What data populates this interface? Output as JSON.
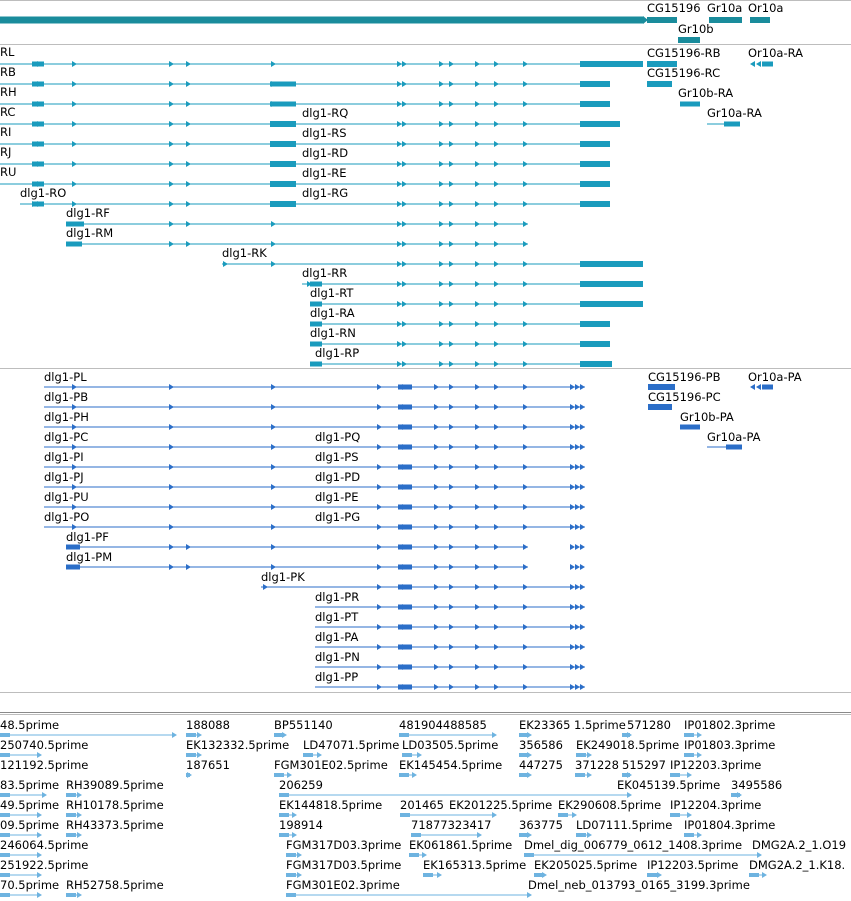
{
  "colors": {
    "gene": "#1a8c9c",
    "rna": "#1a9bbd",
    "protein": "#2b6ec8",
    "cdna": "#6eb3e0"
  },
  "gene_track": {
    "label_items": [
      "CG15196",
      "Gr10a",
      "Or10a",
      "Gr10b"
    ]
  },
  "rna_track": {
    "items": [
      "RL",
      "RB",
      "RH",
      "RC",
      "RI",
      "RJ",
      "RU",
      "dlg1-RO",
      "dlg1-RF",
      "dlg1-RM",
      "dlg1-RK",
      "dlg1-RQ",
      "dlg1-RS",
      "dlg1-RD",
      "dlg1-RE",
      "dlg1-RG",
      "dlg1-RR",
      "dlg1-RT",
      "dlg1-RA",
      "dlg1-RN",
      "dlg1-RP",
      "CG15196-RB",
      "CG15196-RC",
      "Or10a-RA",
      "Gr10b-RA",
      "Gr10a-RA"
    ]
  },
  "protein_track": {
    "items": [
      "dlg1-PL",
      "dlg1-PB",
      "dlg1-PH",
      "dlg1-PC",
      "dlg1-PI",
      "dlg1-PJ",
      "dlg1-PU",
      "dlg1-PO",
      "dlg1-PF",
      "dlg1-PM",
      "dlg1-PK",
      "dlg1-PQ",
      "dlg1-PS",
      "dlg1-PD",
      "dlg1-PE",
      "dlg1-PG",
      "dlg1-PR",
      "dlg1-PT",
      "dlg1-PA",
      "dlg1-PN",
      "dlg1-PP",
      "CG15196-PB",
      "CG15196-PC",
      "Or10a-PA",
      "Gr10b-PA",
      "Gr10a-PA"
    ]
  },
  "cdna_track": {
    "items": [
      "48.5prime",
      "188088",
      "BP551140",
      "481904488585",
      "EK23365",
      "1.5prime",
      "571280",
      "IP01802.3prime",
      "250740.5prime",
      "EK132332.5prime",
      "LD47071.5prime",
      "LD03505.5prime",
      "356586",
      "EK249018.5prime",
      "IP01803.3prime",
      "121192.5prime",
      "187651",
      "FGM301E02.5prime",
      "EK145454.5prime",
      "447275",
      "371228",
      "515297",
      "IP12203.3prime",
      "83.5prime",
      "RH39089.5prime",
      "206259",
      "EK045139.5prime",
      "3495586",
      "49.5prime",
      "RH10178.5prime",
      "EK144818.5prime",
      "201465",
      "EK201225.5prime",
      "EK290608.5prime",
      "IP12204.3prime",
      "09.5prime",
      "RH43373.5prime",
      "198914",
      "71877323417",
      "363775",
      "LD07111.5prime",
      "IP01804.3prime",
      "246064.5prime",
      "FGM317D03.3prime",
      "EK061861.5prime",
      "Dmel_dig_006779_0612_1408.3prime",
      "DMG2A.2_1.O19",
      "251922.5prime",
      "FGM317D03.5prime",
      "EK165313.5prime",
      "EK205025.5prime",
      "IP12203.5prime",
      "DMG2A.2_1.K18.",
      "70.5prime",
      "RH52758.5prime",
      "FGM301E02.3prime",
      "Dmel_neb_013793_0165_3199.3prime"
    ]
  }
}
